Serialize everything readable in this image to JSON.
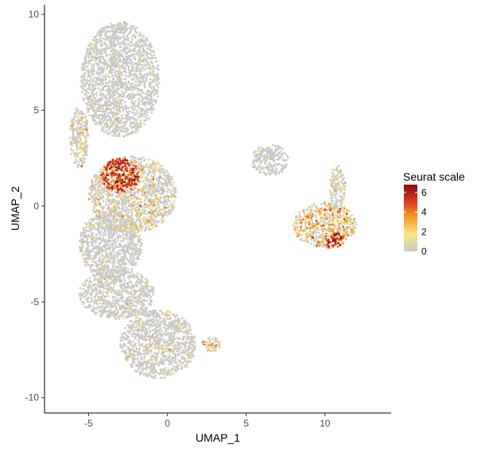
{
  "chart_data": {
    "type": "scatter",
    "xlabel": "UMAP_1",
    "ylabel": "UMAP_2",
    "xlim": [
      -7.8,
      14.2
    ],
    "ylim": [
      -10.8,
      10.5
    ],
    "x_ticks": [
      -5,
      0,
      5,
      10
    ],
    "x_tick_labels": [
      "-5",
      "0",
      "5",
      "10"
    ],
    "y_ticks": [
      -10,
      -5,
      0,
      5,
      10
    ],
    "y_tick_labels": [
      "-10",
      "-5",
      "0",
      "5",
      "10"
    ],
    "grid": false,
    "legend": {
      "title": "Seurat scale",
      "placement": "right",
      "range": [
        0,
        6.8
      ],
      "ticks": [
        0,
        2,
        4,
        6
      ],
      "tick_labels": [
        "0",
        "2",
        "4",
        "6"
      ],
      "colors": [
        "#c8c8c8",
        "#f5e68a",
        "#f5a028",
        "#d83c1e",
        "#8b0a14"
      ]
    },
    "clusters": [
      {
        "name": "upper",
        "cx": -3.0,
        "cy": 6.6,
        "rx": 2.5,
        "ry": 3.0,
        "mean": 0.3
      },
      {
        "name": "left-arm",
        "cx": -5.6,
        "cy": 3.6,
        "rx": 0.6,
        "ry": 1.6,
        "mean": 1.2
      },
      {
        "name": "hotspot",
        "cx": -3.0,
        "cy": 1.6,
        "rx": 1.2,
        "ry": 0.9,
        "mean": 5.0
      },
      {
        "name": "middle",
        "cx": -2.2,
        "cy": 0.6,
        "rx": 2.8,
        "ry": 2.0,
        "mean": 1.5
      },
      {
        "name": "lower-mid",
        "cx": -3.6,
        "cy": -2.0,
        "rx": 2.0,
        "ry": 1.8,
        "mean": 0.3
      },
      {
        "name": "lower-left",
        "cx": -3.2,
        "cy": -4.6,
        "rx": 2.4,
        "ry": 1.3,
        "mean": 0.3
      },
      {
        "name": "bottom",
        "cx": -0.6,
        "cy": -7.2,
        "rx": 2.4,
        "ry": 1.8,
        "mean": 0.6
      },
      {
        "name": "bottom-tail",
        "cx": 2.8,
        "cy": -7.2,
        "rx": 0.6,
        "ry": 0.4,
        "mean": 2.4
      },
      {
        "name": "right-main",
        "cx": 10.0,
        "cy": -1.0,
        "rx": 2.0,
        "ry": 1.2,
        "mean": 2.4
      },
      {
        "name": "right-hot",
        "cx": 10.6,
        "cy": -1.8,
        "rx": 0.6,
        "ry": 0.4,
        "mean": 5.0
      },
      {
        "name": "right-upper",
        "cx": 10.8,
        "cy": 1.0,
        "rx": 0.5,
        "ry": 1.1,
        "mean": 1.0
      },
      {
        "name": "right-arm",
        "cx": 6.5,
        "cy": 2.4,
        "rx": 1.2,
        "ry": 0.8,
        "mean": 0.4
      }
    ]
  }
}
